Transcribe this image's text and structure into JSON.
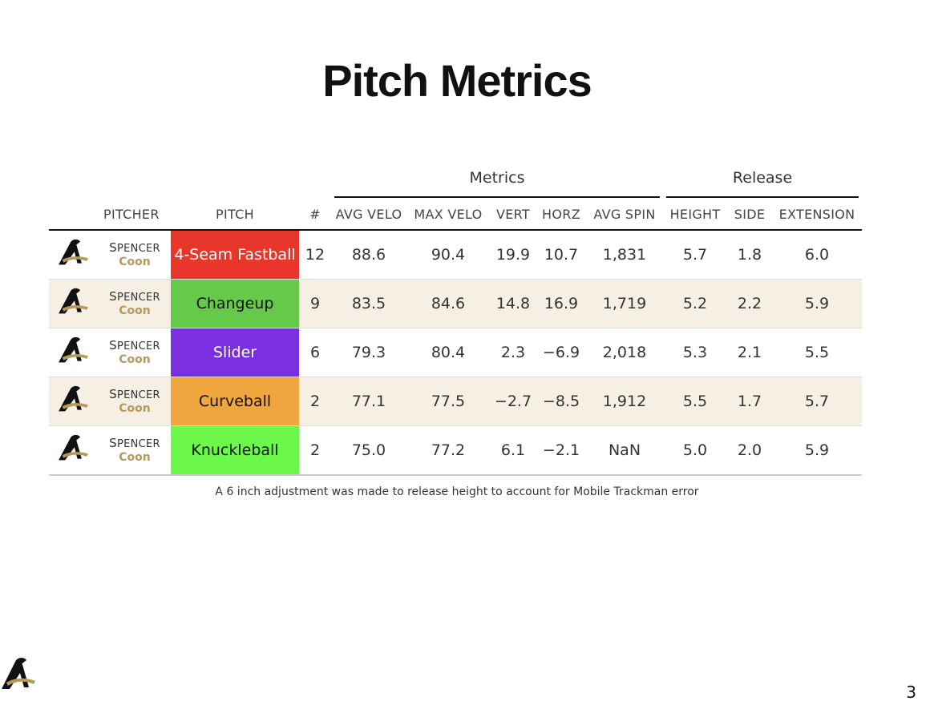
{
  "title": "Pitch Metrics",
  "groups": {
    "metrics": "Metrics",
    "release": "Release"
  },
  "columns": {
    "pitcher": "PITCHER",
    "pitch": "PITCH",
    "count": "#",
    "avg_velo": "AVG VELO",
    "max_velo": "MAX VELO",
    "vert": "VERT",
    "horz": "HORZ",
    "avg_spin": "AVG SPIN",
    "height": "HEIGHT",
    "side": "SIDE",
    "extension": "EXTENSION"
  },
  "rows": [
    {
      "first": "Spencer",
      "last": "Coon",
      "pitch": "4-Seam Fastball",
      "pitch_color": "#e8362a",
      "pitch_text_color": "#ffffff",
      "count": "12",
      "avg_velo": "88.6",
      "max_velo": "90.4",
      "vert": "19.9",
      "horz": "10.7",
      "avg_spin": "1,831",
      "height": "5.7",
      "side": "1.8",
      "extension": "6.0"
    },
    {
      "first": "Spencer",
      "last": "Coon",
      "pitch": "Changeup",
      "pitch_color": "#67c94a",
      "pitch_text_color": "#111111",
      "count": "9",
      "avg_velo": "83.5",
      "max_velo": "84.6",
      "vert": "14.8",
      "horz": "16.9",
      "avg_spin": "1,719",
      "height": "5.2",
      "side": "2.2",
      "extension": "5.9"
    },
    {
      "first": "Spencer",
      "last": "Coon",
      "pitch": "Slider",
      "pitch_color": "#7a2fe0",
      "pitch_text_color": "#ffffff",
      "count": "6",
      "avg_velo": "79.3",
      "max_velo": "80.4",
      "vert": "2.3",
      "horz": "−6.9",
      "avg_spin": "2,018",
      "height": "5.3",
      "side": "2.1",
      "extension": "5.5"
    },
    {
      "first": "Spencer",
      "last": "Coon",
      "pitch": "Curveball",
      "pitch_color": "#f0a63e",
      "pitch_text_color": "#111111",
      "count": "2",
      "avg_velo": "77.1",
      "max_velo": "77.5",
      "vert": "−2.7",
      "horz": "−8.5",
      "avg_spin": "1,912",
      "height": "5.5",
      "side": "1.7",
      "extension": "5.7"
    },
    {
      "first": "Spencer",
      "last": "Coon",
      "pitch": "Knuckleball",
      "pitch_color": "#6cf84a",
      "pitch_text_color": "#111111",
      "count": "2",
      "avg_velo": "75.0",
      "max_velo": "77.2",
      "vert": "6.1",
      "horz": "−2.1",
      "avg_spin": "NaN",
      "height": "5.0",
      "side": "2.0",
      "extension": "5.9"
    }
  ],
  "note": "A 6 inch adjustment was made to release height to account for Mobile Trackman error",
  "page_number": "3",
  "logo_icon": "team-logo-icon",
  "colors": {
    "last_name": "#b8995a",
    "stripe": "#f5efe4"
  }
}
